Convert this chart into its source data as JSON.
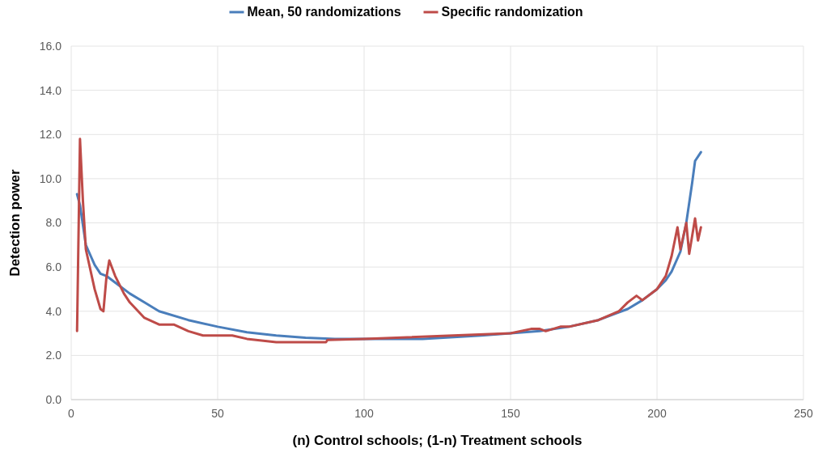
{
  "chart_data": {
    "type": "line",
    "xlabel": "(n) Control schools; (1-n) Treatment schools",
    "ylabel": "Detection power",
    "xlim": [
      0,
      250
    ],
    "xticks": [
      0,
      50,
      100,
      150,
      200,
      250
    ],
    "ylim": [
      0,
      16
    ],
    "yticks": [
      {
        "value": 0,
        "label": "0.0"
      },
      {
        "value": 2,
        "label": "2.0"
      },
      {
        "value": 4,
        "label": "4.0"
      },
      {
        "value": 6,
        "label": "6.0"
      },
      {
        "value": 8,
        "label": "8.0"
      },
      {
        "value": 10,
        "label": "10.0"
      },
      {
        "value": 12,
        "label": "12.0"
      },
      {
        "value": 14,
        "label": "14.0"
      },
      {
        "value": 16,
        "label": "16.0"
      }
    ],
    "grid": true,
    "legend": "top",
    "marker": "none",
    "series": [
      {
        "name": "Mean, 50 randomizations",
        "color": "#4a7ebb",
        "x": [
          2,
          3,
          5,
          6,
          8,
          10,
          12,
          15,
          20,
          25,
          30,
          40,
          50,
          60,
          70,
          80,
          90,
          100,
          120,
          140,
          150,
          160,
          170,
          180,
          190,
          195,
          200,
          203,
          205,
          208,
          210,
          212,
          213,
          215
        ],
        "values": [
          9.3,
          8.8,
          7.0,
          6.7,
          6.1,
          5.7,
          5.6,
          5.3,
          4.8,
          4.4,
          4.0,
          3.6,
          3.3,
          3.05,
          2.9,
          2.8,
          2.75,
          2.75,
          2.75,
          2.9,
          3.0,
          3.1,
          3.3,
          3.6,
          4.1,
          4.5,
          5.0,
          5.4,
          5.8,
          6.7,
          8.0,
          9.8,
          10.8,
          11.2
        ]
      },
      {
        "name": "Specific randomization",
        "color": "#be4b48",
        "x": [
          2,
          3,
          4,
          5,
          8,
          10,
          11,
          12,
          13,
          15,
          18,
          20,
          25,
          30,
          35,
          40,
          45,
          50,
          55,
          60,
          70,
          80,
          87,
          87.5,
          100,
          150,
          157,
          160,
          162,
          167,
          170,
          180,
          187,
          190,
          193,
          195,
          200,
          203,
          205,
          207,
          208,
          210,
          211,
          213,
          214,
          215
        ],
        "values": [
          3.1,
          11.8,
          9.0,
          6.8,
          5.0,
          4.1,
          4.0,
          5.5,
          6.3,
          5.6,
          4.8,
          4.4,
          3.7,
          3.4,
          3.4,
          3.1,
          2.9,
          2.9,
          2.9,
          2.75,
          2.6,
          2.6,
          2.6,
          2.7,
          2.75,
          3.0,
          3.2,
          3.2,
          3.1,
          3.3,
          3.3,
          3.6,
          4.0,
          4.4,
          4.7,
          4.5,
          5.0,
          5.6,
          6.5,
          7.8,
          6.8,
          8.0,
          6.6,
          8.2,
          7.2,
          7.8
        ]
      }
    ]
  }
}
